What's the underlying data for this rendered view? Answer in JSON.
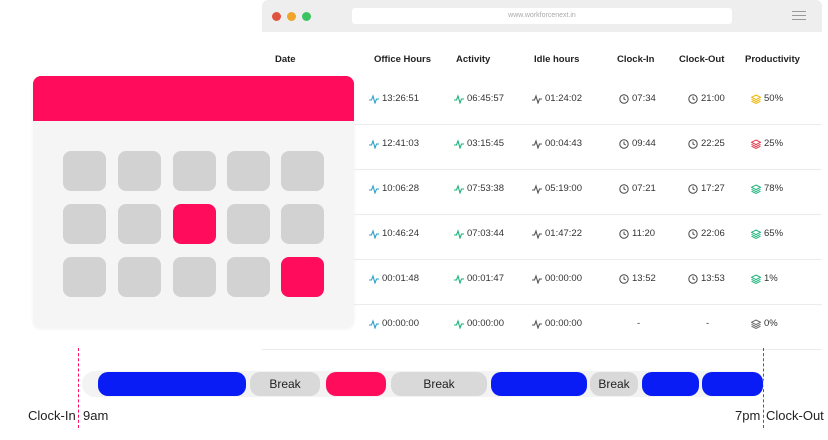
{
  "browser": {
    "url": "www.workforcenext.in"
  },
  "table": {
    "headers": [
      "Date",
      "Office Hours",
      "Activity",
      "Idle hours",
      "Clock-In",
      "Clock-Out",
      "Productivity"
    ],
    "rows": [
      {
        "office": "13:26:51",
        "activity": "06:45:57",
        "idle": "01:24:02",
        "clock_in": "07:34",
        "clock_out": "21:00",
        "productivity": "50%",
        "prod_color": "#f0b400"
      },
      {
        "office": "12:41:03",
        "activity": "03:15:45",
        "idle": "00:04:43",
        "clock_in": "09:44",
        "clock_out": "22:25",
        "productivity": "25%",
        "prod_color": "#e8354a"
      },
      {
        "office": "10:06:28",
        "activity": "07:53:38",
        "idle": "05:19:00",
        "clock_in": "07:21",
        "clock_out": "17:27",
        "productivity": "78%",
        "prod_color": "#1ab37a"
      },
      {
        "office": "10:46:24",
        "activity": "07:03:44",
        "idle": "01:47:22",
        "clock_in": "11:20",
        "clock_out": "22:06",
        "productivity": "65%",
        "prod_color": "#1ab37a"
      },
      {
        "office": "00:01:48",
        "activity": "00:01:47",
        "idle": "00:00:00",
        "clock_in": "13:52",
        "clock_out": "13:53",
        "productivity": "1%",
        "prod_color": "#1ab37a"
      },
      {
        "office": "00:00:00",
        "activity": "00:00:00",
        "idle": "00:00:00",
        "clock_in": "-",
        "clock_out": "-",
        "productivity": "0%",
        "prod_color": "#666666"
      }
    ]
  },
  "timeline": {
    "break_label": "Break",
    "clock_in_label": "Clock-In",
    "start_time": "9am",
    "end_time": "7pm",
    "clock_out_label": "Clock-Out"
  },
  "colors": {
    "accent_pink": "#ff0d5c",
    "work_blue": "#0a1cf5",
    "office_icon": "#2ba0c8",
    "activity_icon": "#1ab37a",
    "idle_icon": "#555555"
  },
  "icons": [
    "pulse-icon",
    "clock-icon",
    "layers-icon",
    "menu-icon"
  ]
}
